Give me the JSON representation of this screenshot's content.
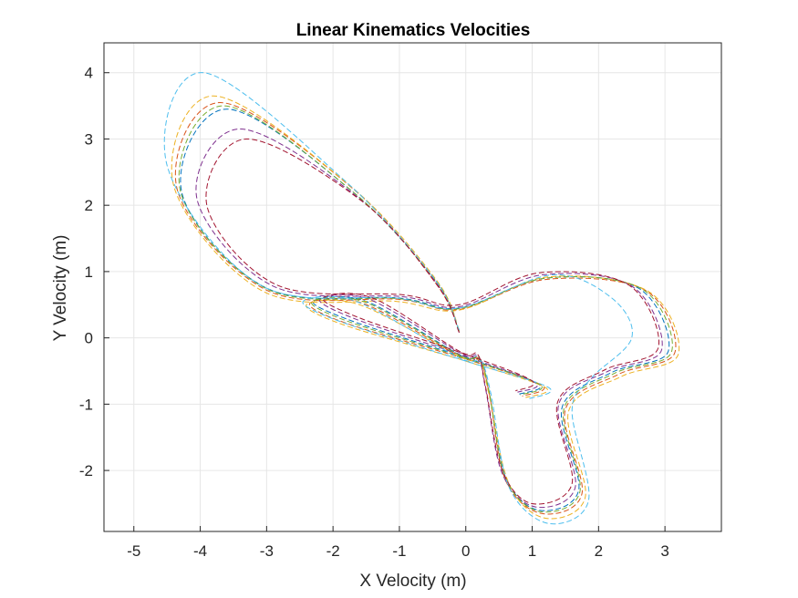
{
  "chart_data": {
    "type": "line",
    "title": "Linear Kinematics Velocities",
    "xlabel": "X Velocity (m)",
    "ylabel": "Y Velocity (m)",
    "xlim": [
      -5.45,
      3.85
    ],
    "ylim": [
      -2.92,
      4.45
    ],
    "xticks": [
      -5,
      -4,
      -3,
      -2,
      -1,
      0,
      1,
      2,
      3
    ],
    "yticks": [
      -2,
      -1,
      0,
      1,
      2,
      3,
      4
    ],
    "xtick_labels": [
      "-5",
      "-4",
      "-3",
      "-2",
      "-1",
      "0",
      "1",
      "2",
      "3"
    ],
    "ytick_labels": [
      "-2",
      "-1",
      "0",
      "1",
      "2",
      "3",
      "4"
    ],
    "grid": true,
    "line_style": "dashed",
    "colors": [
      "#0072BD",
      "#D95319",
      "#EDB120",
      "#7E2F8E",
      "#77AC30",
      "#4DBEEE",
      "#A2142F"
    ],
    "series": [
      {
        "x": [
          -0.1,
          -0.45,
          -1.7,
          -3.6,
          -4.28,
          -3.0,
          -1.0,
          -0.1,
          1.2,
          2.6,
          3.05,
          2.2,
          1.45,
          1.7,
          1.1,
          0.6,
          0.35,
          0.2,
          -0.1,
          -1.5,
          -2.3,
          -1.7,
          0.0,
          1.1,
          0.8
        ],
        "y": [
          0.1,
          0.85,
          2.2,
          3.45,
          2.2,
          0.75,
          0.6,
          0.45,
          0.9,
          0.75,
          -0.2,
          -0.52,
          -1.05,
          -2.3,
          -2.6,
          -2.1,
          -0.8,
          -0.3,
          -0.25,
          0.55,
          0.55,
          0.25,
          -0.3,
          -0.7,
          -0.85
        ]
      },
      {
        "x": [
          -0.1,
          -0.45,
          -1.7,
          -3.7,
          -4.35,
          -3.0,
          -1.0,
          -0.1,
          1.2,
          2.7,
          3.15,
          2.3,
          1.5,
          1.75,
          1.15,
          0.6,
          0.35,
          0.2,
          -0.1,
          -1.55,
          -2.35,
          -1.8,
          0.0,
          1.15,
          0.85
        ],
        "y": [
          0.1,
          0.82,
          2.25,
          3.55,
          2.25,
          0.72,
          0.58,
          0.43,
          0.88,
          0.72,
          -0.22,
          -0.55,
          -1.08,
          -2.35,
          -2.65,
          -2.15,
          -0.82,
          -0.32,
          -0.27,
          0.52,
          0.52,
          0.22,
          -0.32,
          -0.72,
          -0.88
        ]
      },
      {
        "x": [
          -0.1,
          -0.45,
          -1.75,
          -3.8,
          -4.4,
          -3.05,
          -1.05,
          -0.1,
          1.25,
          2.75,
          3.2,
          2.35,
          1.55,
          1.8,
          1.2,
          0.65,
          0.35,
          0.2,
          -0.1,
          -1.6,
          -2.4,
          -1.85,
          0.0,
          1.2,
          0.9
        ],
        "y": [
          0.12,
          0.88,
          2.3,
          3.65,
          2.3,
          0.7,
          0.55,
          0.42,
          0.92,
          0.7,
          -0.25,
          -0.58,
          -1.1,
          -2.4,
          -2.72,
          -2.2,
          -0.85,
          -0.35,
          -0.28,
          0.5,
          0.5,
          0.2,
          -0.35,
          -0.75,
          -0.9
        ]
      },
      {
        "x": [
          -0.1,
          -0.42,
          -1.6,
          -3.4,
          -4.05,
          -2.9,
          -0.95,
          -0.1,
          1.15,
          2.5,
          2.95,
          2.15,
          1.4,
          1.65,
          1.05,
          0.55,
          0.3,
          0.18,
          -0.1,
          -1.45,
          -2.2,
          -1.65,
          0.0,
          1.05,
          0.78
        ],
        "y": [
          0.08,
          0.8,
          2.1,
          3.15,
          2.1,
          0.78,
          0.62,
          0.47,
          0.95,
          0.78,
          -0.18,
          -0.5,
          -1.0,
          -2.25,
          -2.55,
          -2.05,
          -0.78,
          -0.28,
          -0.22,
          0.58,
          0.58,
          0.28,
          -0.28,
          -0.68,
          -0.82
        ]
      },
      {
        "x": [
          -0.1,
          -0.45,
          -1.72,
          -3.65,
          -4.3,
          -3.0,
          -1.0,
          -0.1,
          1.2,
          2.65,
          3.1,
          2.25,
          1.48,
          1.72,
          1.12,
          0.6,
          0.35,
          0.2,
          -0.1,
          -1.52,
          -2.32,
          -1.75,
          0.0,
          1.12,
          0.82
        ],
        "y": [
          0.1,
          0.86,
          2.22,
          3.5,
          2.22,
          0.74,
          0.59,
          0.44,
          0.9,
          0.74,
          -0.21,
          -0.53,
          -1.06,
          -2.32,
          -2.62,
          -2.12,
          -0.81,
          -0.31,
          -0.26,
          0.54,
          0.54,
          0.24,
          -0.31,
          -0.71,
          -0.86
        ]
      },
      {
        "x": [
          -0.1,
          -0.48,
          -1.8,
          -3.95,
          -4.5,
          -3.1,
          -1.05,
          -0.1,
          1.3,
          2.2,
          2.5,
          1.9,
          1.6,
          1.85,
          1.25,
          0.65,
          0.38,
          0.22,
          -0.1,
          -1.65,
          -2.45,
          -1.9,
          0.0,
          1.25,
          0.95
        ],
        "y": [
          0.12,
          0.9,
          2.35,
          4.0,
          2.6,
          0.8,
          0.6,
          0.45,
          0.95,
          0.6,
          0.0,
          -0.6,
          -1.1,
          -2.45,
          -2.8,
          -2.25,
          -0.85,
          -0.35,
          -0.3,
          0.55,
          0.55,
          0.25,
          -0.35,
          -0.75,
          -0.92
        ]
      },
      {
        "x": [
          -0.1,
          -0.42,
          -1.55,
          -3.3,
          -3.9,
          -2.85,
          -0.95,
          -0.1,
          1.1,
          2.45,
          2.9,
          2.1,
          1.38,
          1.6,
          1.0,
          0.55,
          0.3,
          0.18,
          -0.1,
          -1.4,
          -2.15,
          -1.6,
          0.0,
          1.0,
          0.75
        ],
        "y": [
          0.08,
          0.78,
          2.05,
          3.0,
          2.0,
          0.8,
          0.65,
          0.5,
          0.98,
          0.8,
          -0.15,
          -0.48,
          -0.98,
          -2.2,
          -2.5,
          -2.0,
          -0.75,
          -0.25,
          -0.2,
          0.6,
          0.6,
          0.3,
          -0.25,
          -0.65,
          -0.8
        ]
      }
    ]
  }
}
